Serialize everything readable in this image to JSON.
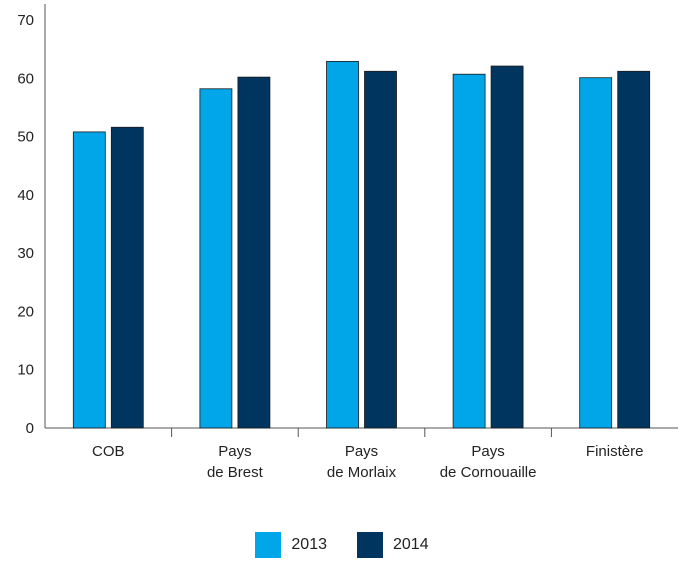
{
  "chart_data": {
    "type": "bar",
    "categories": [
      [
        "COB"
      ],
      [
        "Pays",
        "de Brest"
      ],
      [
        "Pays",
        "de Morlaix"
      ],
      [
        "Pays",
        "de Cornouaille"
      ],
      [
        "Finistère"
      ]
    ],
    "series": [
      {
        "name": "2013",
        "color": "#00a6e8",
        "values": [
          50.8,
          58.2,
          62.9,
          60.7,
          60.1
        ]
      },
      {
        "name": "2014",
        "color": "#003560",
        "values": [
          51.6,
          60.2,
          61.2,
          62.1,
          61.2
        ]
      }
    ],
    "yticks": [
      "0",
      "10",
      "20",
      "30",
      "40",
      "50",
      "60",
      "70"
    ],
    "ylim": [
      0,
      70
    ],
    "grid": false,
    "legend_position": "bottom-center",
    "title": "",
    "xlabel": "",
    "ylabel": ""
  }
}
